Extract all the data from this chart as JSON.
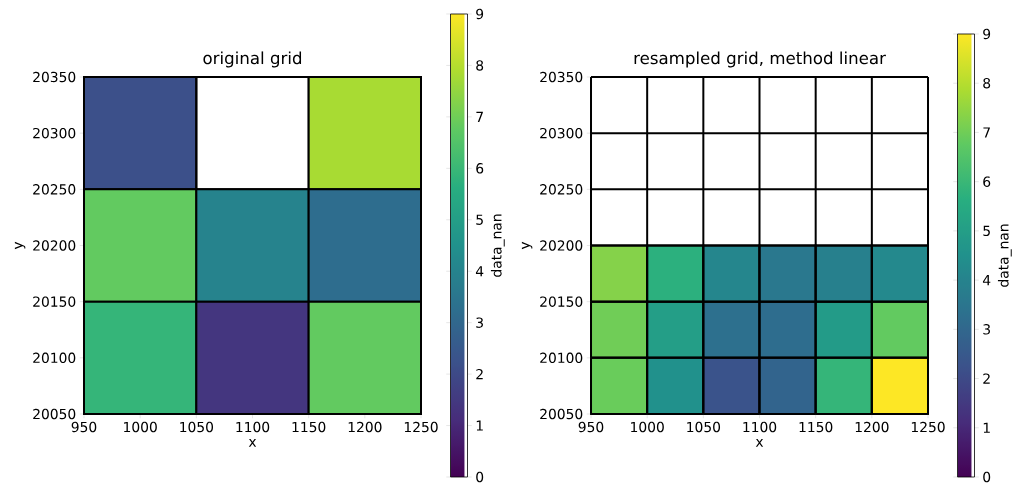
{
  "chart_data": [
    {
      "type": "heatmap",
      "title": "original grid",
      "xlabel": "x",
      "ylabel": "y",
      "clabel": "data_nan",
      "x": [
        1000,
        1100,
        1200
      ],
      "y": [
        20300,
        20200,
        20100
      ],
      "cells": [
        [
          2.2,
          null,
          7.8
        ],
        [
          6.8,
          4.0,
          3.2
        ],
        [
          5.9,
          1.4,
          6.8
        ]
      ],
      "xlim": [
        950,
        1250
      ],
      "xticks": [
        950,
        1000,
        1050,
        1100,
        1150,
        1200,
        1250
      ],
      "ylim": [
        20050,
        20350
      ],
      "yticks": [
        20050,
        20100,
        20150,
        20200,
        20250,
        20300,
        20350
      ],
      "clim": [
        0,
        9
      ],
      "cticks": [
        0,
        1,
        2,
        3,
        4,
        5,
        6,
        7,
        8,
        9
      ]
    },
    {
      "type": "heatmap",
      "title": "resampled grid, method linear",
      "xlabel": "x",
      "ylabel": "y",
      "clabel": "data_nan",
      "x": [
        975,
        1025,
        1075,
        1125,
        1175,
        1225
      ],
      "y": [
        20175,
        20125,
        20075
      ],
      "grid": true,
      "cells": [
        [
          7.3,
          5.7,
          4.1,
          3.6,
          3.9,
          4.2
        ],
        [
          7.0,
          5.0,
          3.3,
          3.2,
          4.9,
          6.8
        ],
        [
          6.9,
          4.5,
          2.3,
          2.9,
          5.9,
          9
        ]
      ],
      "xlim": [
        950,
        1250
      ],
      "xticks": [
        950,
        1000,
        1050,
        1100,
        1150,
        1200,
        1250
      ],
      "ylim": [
        20050,
        20350
      ],
      "yticks": [
        20050,
        20100,
        20150,
        20200,
        20250,
        20300,
        20350
      ],
      "clim": [
        0,
        9
      ],
      "cticks": [
        0,
        1,
        2,
        3,
        4,
        5,
        6,
        7,
        8,
        9
      ]
    }
  ]
}
